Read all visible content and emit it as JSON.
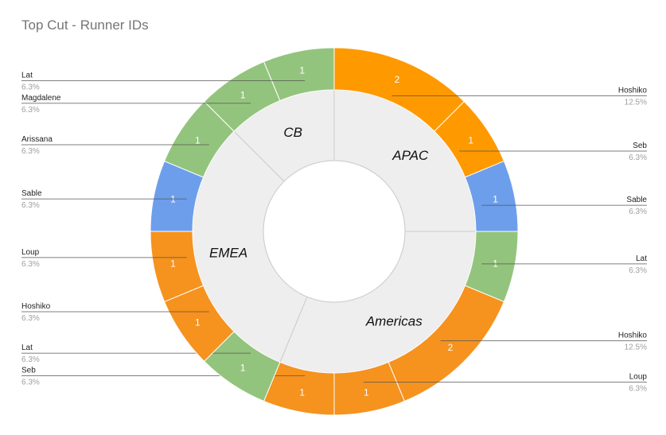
{
  "chart_data": {
    "type": "pie",
    "title": "Top Cut - Runner IDs",
    "inner_ring": {
      "categories": [
        "APAC",
        "Americas",
        "EMEA",
        "CB"
      ],
      "values": [
        4,
        5,
        5,
        2
      ],
      "color": "#eeeeee"
    },
    "outer_ring": [
      {
        "name": "Hoshiko",
        "value": 2,
        "percent": "12.5%",
        "color": "#ff9900"
      },
      {
        "name": "Seb",
        "value": 1,
        "percent": "6.3%",
        "color": "#ff9900"
      },
      {
        "name": "Sable",
        "value": 1,
        "percent": "6.3%",
        "color": "#6d9eeb"
      },
      {
        "name": "Lat",
        "value": 1,
        "percent": "6.3%",
        "color": "#93c47d"
      },
      {
        "name": "Hoshiko",
        "value": 2,
        "percent": "12.5%",
        "color": "#f6921e"
      },
      {
        "name": "Loup",
        "value": 1,
        "percent": "6.3%",
        "color": "#f6921e"
      },
      {
        "name": "Seb",
        "value": 1,
        "percent": "6.3%",
        "color": "#f6921e"
      },
      {
        "name": "Lat",
        "value": 1,
        "percent": "6.3%",
        "color": "#93c47d"
      },
      {
        "name": "Hoshiko",
        "value": 1,
        "percent": "6.3%",
        "color": "#f6921e"
      },
      {
        "name": "Loup",
        "value": 1,
        "percent": "6.3%",
        "color": "#f6921e"
      },
      {
        "name": "Sable",
        "value": 1,
        "percent": "6.3%",
        "color": "#6d9eeb"
      },
      {
        "name": "Arissana",
        "value": 1,
        "percent": "6.3%",
        "color": "#93c47d"
      },
      {
        "name": "Magdalene",
        "value": 1,
        "percent": "6.3%",
        "color": "#93c47d"
      },
      {
        "name": "Lat",
        "value": 1,
        "percent": "6.3%",
        "color": "#93c47d"
      }
    ],
    "legend": "none"
  }
}
